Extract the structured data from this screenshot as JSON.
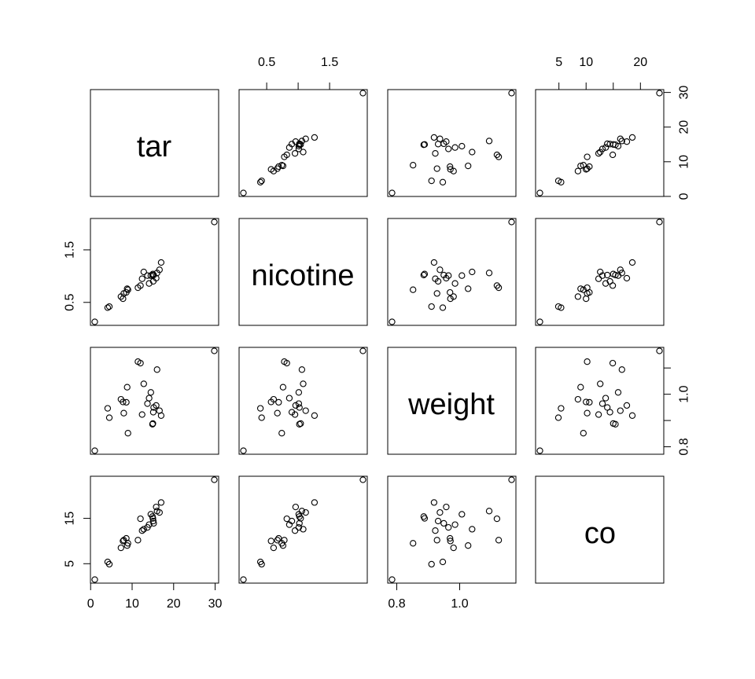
{
  "chart_data": {
    "type": "scatter",
    "variables": [
      "tar",
      "nicotine",
      "weight",
      "co"
    ],
    "axes": {
      "tar": {
        "ticks": [
          0,
          10,
          20,
          30
        ],
        "tick_labels": [
          "0",
          "10",
          "20",
          "30"
        ],
        "range": [
          1.0,
          29.8
        ]
      },
      "nicotine": {
        "ticks": [
          0.5,
          1.5
        ],
        "tick_labels": [
          "0.5",
          "1.5"
        ],
        "range": [
          0.13,
          2.03
        ]
      },
      "weight": {
        "ticks": [
          0.8,
          1.0
        ],
        "tick_labels": [
          "0.8",
          "1.0"
        ],
        "range": [
          0.785,
          1.165
        ]
      },
      "co": {
        "ticks": [
          5,
          15
        ],
        "tick_labels": [
          "5",
          "15"
        ],
        "range": [
          1.5,
          23.5
        ]
      }
    },
    "top_axes": {
      "nicotine": {
        "ticks": [
          0.5,
          1.0,
          1.5
        ],
        "tick_labels": [
          "0.5",
          "",
          "1.5"
        ]
      },
      "co": {
        "ticks": [
          5,
          10,
          15,
          20
        ],
        "tick_labels": [
          "5",
          "10",
          "",
          "20"
        ]
      }
    },
    "right_axes": {
      "tar": {
        "ticks": [
          0,
          10,
          20,
          30
        ],
        "tick_labels": [
          "0",
          "10",
          "20",
          "30"
        ]
      },
      "weight": {
        "ticks": [
          0.8,
          0.9,
          1.0,
          1.1
        ],
        "tick_labels": [
          "0.8",
          "",
          "1.0",
          ""
        ]
      }
    },
    "data": {
      "tar": [
        14.1,
        16.0,
        29.8,
        8.0,
        4.1,
        15.0,
        8.8,
        12.4,
        16.6,
        14.9,
        13.7,
        15.1,
        7.8,
        11.4,
        9.0,
        1.0,
        17.0,
        12.8,
        15.8,
        4.5,
        14.5,
        7.3,
        8.6,
        15.2,
        12.0
      ],
      "nicotine": [
        0.86,
        1.06,
        2.03,
        0.67,
        0.4,
        1.04,
        0.76,
        0.95,
        1.12,
        1.02,
        1.01,
        0.9,
        0.57,
        0.78,
        0.74,
        0.13,
        1.26,
        1.08,
        0.96,
        0.42,
        1.01,
        0.61,
        0.69,
        1.02,
        0.82
      ],
      "weight": [
        0.9853,
        1.0938,
        1.165,
        0.928,
        0.9462,
        0.8885,
        1.0267,
        0.9225,
        0.9372,
        0.8858,
        0.9643,
        0.9316,
        0.9705,
        1.124,
        0.8517,
        0.7851,
        0.9186,
        1.0395,
        0.9573,
        0.9106,
        1.007,
        0.9806,
        0.9693,
        0.9496,
        1.1184
      ],
      "co": [
        13.6,
        16.6,
        23.5,
        10.2,
        5.4,
        15.0,
        9.0,
        12.3,
        16.3,
        15.4,
        13.0,
        14.4,
        10.0,
        10.2,
        9.5,
        1.5,
        18.5,
        12.6,
        17.5,
        4.9,
        15.9,
        8.5,
        10.6,
        13.9,
        14.9
      ]
    }
  }
}
